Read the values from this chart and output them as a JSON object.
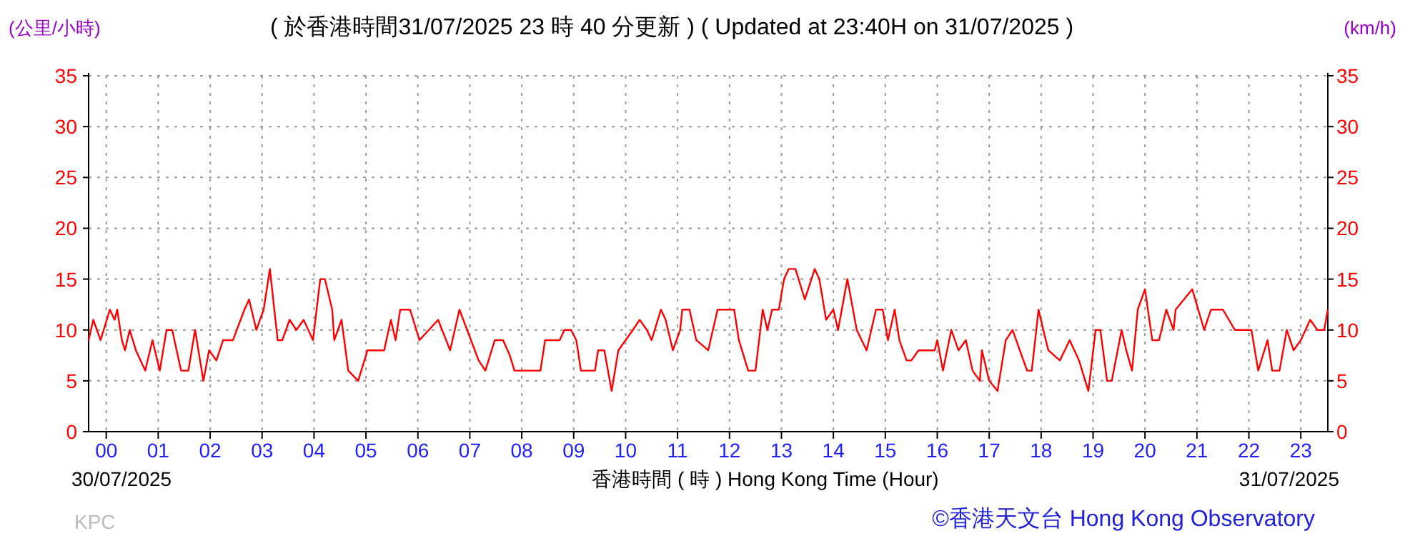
{
  "chart_data": {
    "type": "line",
    "title": "( 於香港時間31/07/2025 23 時 40 分更新 ) ( Updated at 23:40H on 31/07/2025 )",
    "ylabel": "(公里/小時)",
    "y2label": "(km/h)",
    "xlabel": "香港時間 ( 時 ) Hong Kong Time (Hour)",
    "annotations": [
      "30/07/2025",
      "31/07/2025",
      "KPC",
      "©香港天文台 Hong Kong Observatory"
    ],
    "xlim": [
      -0.34,
      23.52
    ],
    "xticks": [
      {
        "value": 0,
        "label": "00"
      },
      {
        "value": 1,
        "label": "01"
      },
      {
        "value": 2,
        "label": "02"
      },
      {
        "value": 3,
        "label": "03"
      },
      {
        "value": 4,
        "label": "04"
      },
      {
        "value": 5,
        "label": "05"
      },
      {
        "value": 6,
        "label": "06"
      },
      {
        "value": 7,
        "label": "07"
      },
      {
        "value": 8,
        "label": "08"
      },
      {
        "value": 9,
        "label": "09"
      },
      {
        "value": 10,
        "label": "10"
      },
      {
        "value": 11,
        "label": "11"
      },
      {
        "value": 12,
        "label": "12"
      },
      {
        "value": 13,
        "label": "13"
      },
      {
        "value": 14,
        "label": "14"
      },
      {
        "value": 15,
        "label": "15"
      },
      {
        "value": 16,
        "label": "16"
      },
      {
        "value": 17,
        "label": "17"
      },
      {
        "value": 18,
        "label": "18"
      },
      {
        "value": 19,
        "label": "19"
      },
      {
        "value": 20,
        "label": "20"
      },
      {
        "value": 21,
        "label": "21"
      },
      {
        "value": 22,
        "label": "22"
      },
      {
        "value": 23,
        "label": "23"
      }
    ],
    "ylim": [
      0,
      35
    ],
    "yticks": [
      0,
      5,
      10,
      15,
      20,
      25,
      30,
      35
    ],
    "y2lim": [
      0,
      35
    ],
    "y2ticks": [
      0,
      5,
      10,
      15,
      20,
      25,
      30,
      35
    ],
    "grid": true,
    "line_style": "solid",
    "series": [
      {
        "color": "#ff0000",
        "x": [
          -0.34,
          -0.25,
          -0.11,
          0.07,
          0.16,
          0.21,
          0.3,
          0.36,
          0.45,
          0.57,
          0.75,
          0.89,
          1.03,
          1.16,
          1.27,
          1.44,
          1.58,
          1.71,
          1.87,
          1.98,
          2.12,
          2.25,
          2.44,
          2.66,
          2.75,
          2.89,
          3.03,
          3.15,
          3.3,
          3.39,
          3.53,
          3.66,
          3.8,
          3.98,
          4.12,
          4.21,
          4.35,
          4.39,
          4.53,
          4.66,
          4.85,
          5.03,
          5.35,
          5.48,
          5.57,
          5.66,
          5.85,
          6.03,
          6.39,
          6.62,
          6.8,
          7.17,
          7.3,
          7.48,
          7.64,
          7.77,
          7.86,
          8.36,
          8.45,
          8.59,
          8.73,
          8.82,
          8.95,
          9.05,
          9.14,
          9.41,
          9.47,
          9.59,
          9.73,
          9.86,
          10.0,
          10.14,
          10.27,
          10.41,
          10.5,
          10.68,
          10.77,
          10.91,
          11.05,
          11.09,
          11.23,
          11.36,
          11.59,
          11.77,
          12.09,
          12.18,
          12.36,
          12.5,
          12.64,
          12.73,
          12.82,
          12.95,
          13.05,
          13.14,
          13.27,
          13.45,
          13.64,
          13.73,
          13.86,
          14.0,
          14.09,
          14.27,
          14.45,
          14.64,
          14.82,
          14.95,
          15.05,
          15.18,
          15.27,
          15.41,
          15.5,
          15.64,
          15.95,
          16.0,
          16.11,
          16.27,
          16.41,
          16.55,
          16.68,
          16.82,
          16.86,
          17.0,
          17.16,
          17.32,
          17.45,
          17.59,
          17.73,
          17.82,
          17.95,
          18.09,
          18.14,
          18.36,
          18.55,
          18.73,
          18.91,
          19.05,
          19.14,
          19.27,
          19.36,
          19.55,
          19.64,
          19.75,
          19.86,
          20.0,
          20.14,
          20.27,
          20.41,
          20.55,
          20.59,
          20.91,
          21.14,
          21.27,
          21.5,
          21.73,
          22.05,
          22.18,
          22.36,
          22.45,
          22.59,
          22.73,
          22.86,
          23.0,
          23.18,
          23.32,
          23.45,
          23.52
        ],
        "values": [
          9,
          11,
          9,
          12,
          11,
          12,
          9,
          8,
          10,
          8,
          6,
          9,
          6,
          10,
          10,
          6,
          6,
          10,
          5,
          8,
          7,
          9,
          9,
          12,
          13,
          10,
          12,
          16,
          9,
          9,
          11,
          10,
          11,
          9,
          15,
          15,
          12,
          9,
          11,
          6,
          5,
          8,
          8,
          11,
          9,
          12,
          12,
          9,
          11,
          8,
          12,
          7,
          6,
          9,
          9,
          7.5,
          6,
          6,
          9,
          9,
          9,
          10,
          10,
          9,
          6,
          6,
          8,
          8,
          4,
          8,
          9,
          10,
          11,
          10,
          9,
          12,
          11,
          8,
          10,
          12,
          12,
          9,
          8,
          12,
          12,
          9,
          6,
          6,
          12,
          10,
          12,
          12,
          15,
          16,
          16,
          13,
          16,
          15,
          11,
          12,
          10,
          15,
          10,
          8,
          12,
          12,
          9,
          12,
          9,
          7,
          7,
          8,
          8,
          9,
          6,
          10,
          8,
          9,
          6,
          5,
          8,
          5,
          4,
          9,
          10,
          8,
          6,
          6,
          12,
          9,
          8,
          7,
          9,
          7,
          4,
          10,
          10,
          5,
          5,
          10,
          8,
          6,
          12,
          14,
          9,
          9,
          12,
          10,
          12,
          14,
          10,
          12,
          12,
          10,
          10,
          6,
          9,
          6,
          6,
          10,
          8,
          9,
          11,
          10,
          10,
          12
        ]
      }
    ]
  }
}
